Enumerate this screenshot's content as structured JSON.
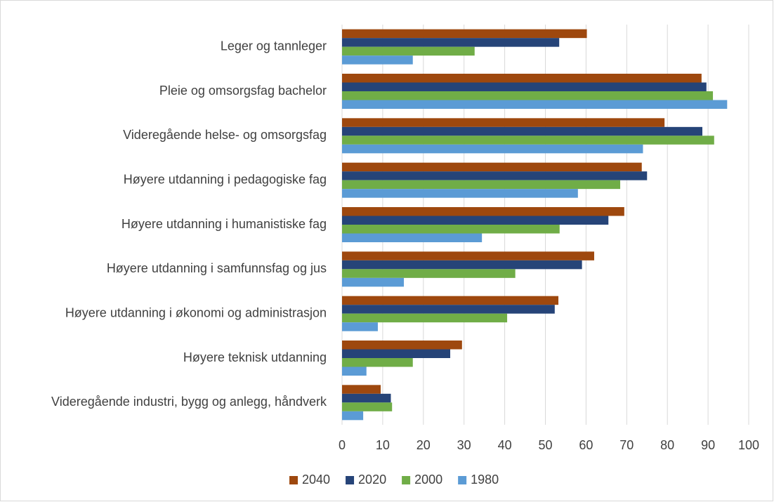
{
  "chart_data": {
    "type": "hbar",
    "categories": [
      "Leger og tannleger",
      "Pleie og omsorgsfag bachelor",
      "Videregående helse- og omsorgsfag",
      "Høyere utdanning i pedagogiske fag",
      "Høyere utdanning i humanistiske fag",
      "Høyere utdanning i samfunnsfag og jus",
      "Høyere utdanning i økonomi og administrasjon",
      "Høyere teknisk utdanning",
      "Videregående industri, bygg og anlegg, håndverk"
    ],
    "series": [
      {
        "name": "2040",
        "color": "#9e480e",
        "values": [
          60.2,
          88.4,
          79.3,
          73.7,
          69.4,
          62,
          53.2,
          29.5,
          9.5
        ]
      },
      {
        "name": "2020",
        "color": "#264478",
        "values": [
          53.4,
          89.6,
          88.6,
          75,
          65.5,
          59,
          52.3,
          26.6,
          12
        ]
      },
      {
        "name": "2000",
        "color": "#70ad47",
        "values": [
          32.6,
          91.2,
          91.5,
          68.4,
          53.5,
          42.6,
          40.6,
          17.4,
          12.3
        ]
      },
      {
        "name": "1980",
        "color": "#5b9bd5",
        "values": [
          17.4,
          94.7,
          74,
          58,
          34.4,
          15.2,
          8.8,
          6,
          5.2
        ]
      }
    ],
    "xlim": [
      0,
      100
    ],
    "xticks": [
      0,
      10,
      20,
      30,
      40,
      50,
      60,
      70,
      80,
      90,
      100
    ],
    "grid": true,
    "legend": "bottom"
  }
}
